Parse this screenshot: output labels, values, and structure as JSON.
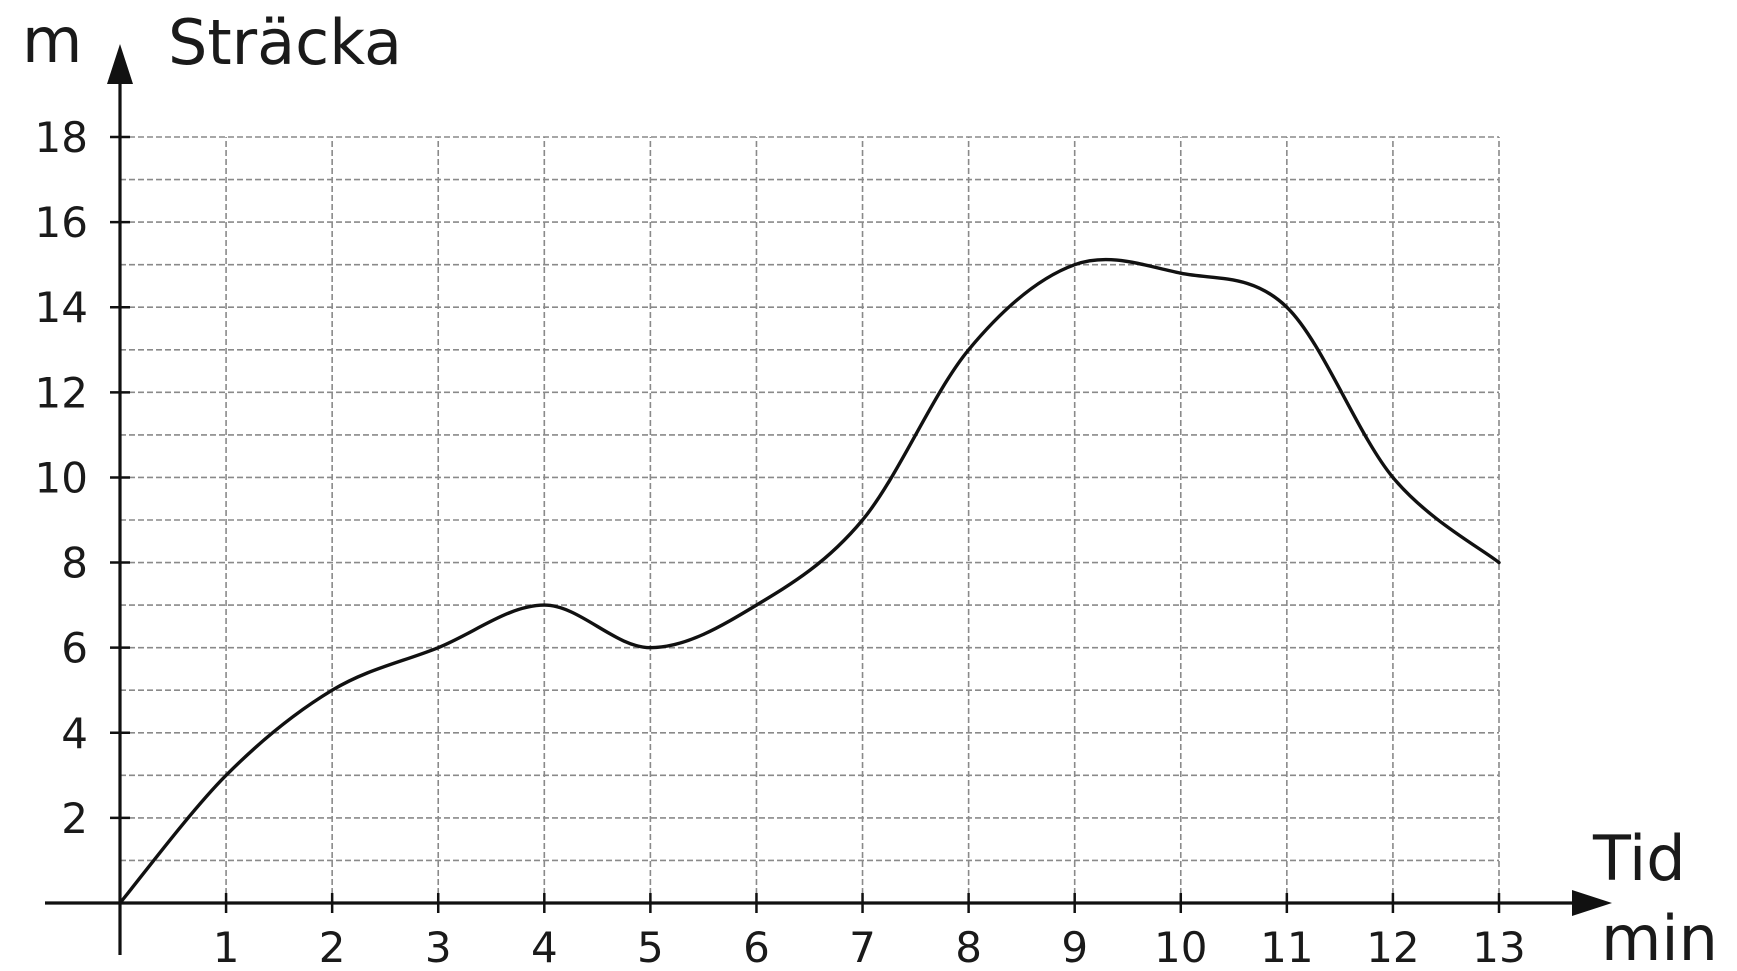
{
  "chart_data": {
    "type": "line",
    "ylabel": "Sträcka",
    "yunit": "m",
    "xlabel": "Tid",
    "xunit": "min",
    "xlim": [
      0,
      13
    ],
    "ylim": [
      0,
      18
    ],
    "x_ticks": [
      1,
      2,
      3,
      4,
      5,
      6,
      7,
      8,
      9,
      10,
      11,
      12,
      13
    ],
    "y_ticks": [
      2,
      4,
      6,
      8,
      10,
      12,
      14,
      16,
      18
    ],
    "grid": true,
    "x_minor_step": 1,
    "y_minor_step": 1,
    "series": [
      {
        "x": [
          0,
          1,
          2,
          3,
          4,
          5,
          6,
          7,
          8,
          9,
          10,
          11,
          12,
          13
        ],
        "y": [
          0,
          3,
          5,
          6,
          7,
          6,
          7,
          9,
          13,
          15,
          14.8,
          14,
          10,
          8
        ]
      }
    ]
  }
}
